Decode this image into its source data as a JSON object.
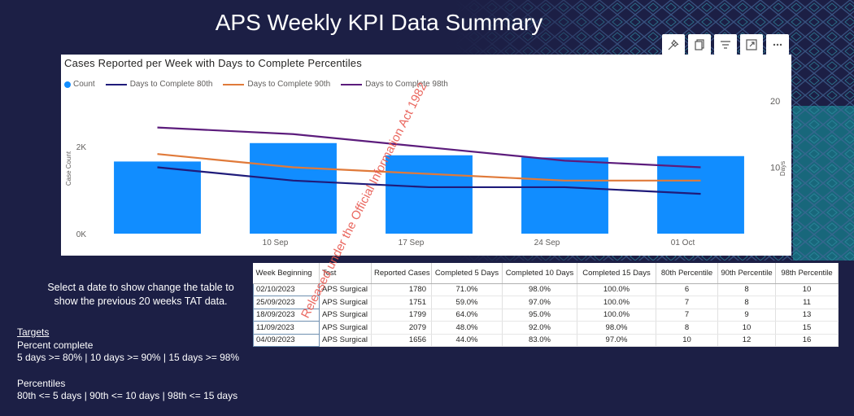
{
  "page": {
    "title": "APS Weekly KPI Data Summary",
    "watermark": "Released under the Official Information Act 1982"
  },
  "toolbar": {
    "items": [
      {
        "icon": "pin-icon"
      },
      {
        "icon": "copy-visual-icon"
      },
      {
        "icon": "filter-icon"
      },
      {
        "icon": "focus-mode-icon"
      },
      {
        "icon": "more-options-icon"
      }
    ]
  },
  "chart_data": {
    "type": "bar",
    "title": "Cases Reported per Week with Days to Complete Percentiles",
    "legend_position": "top-left",
    "legend": [
      {
        "label": "Count",
        "color": "#118dff",
        "kind": "dot"
      },
      {
        "label": "Days to Complete 80th",
        "color": "#1f1b7a",
        "kind": "line"
      },
      {
        "label": "Days to Complete 90th",
        "color": "#e07a3a",
        "kind": "line"
      },
      {
        "label": "Days to Complete 98th",
        "color": "#5c1c7c",
        "kind": "line"
      }
    ],
    "categories": [
      "04/09/2023",
      "11/09/2023",
      "18/09/2023",
      "25/09/2023",
      "02/10/2023"
    ],
    "x_tick_labels": [
      "",
      "10 Sep",
      "17 Sep",
      "24 Sep",
      "01 Oct"
    ],
    "bars": {
      "name": "Count",
      "values": [
        1656,
        2079,
        1799,
        1751,
        1780
      ],
      "color": "#118dff"
    },
    "lines": [
      {
        "name": "Days to Complete 80th",
        "values": [
          10,
          8,
          7,
          7,
          6
        ],
        "color": "#1f1b7a"
      },
      {
        "name": "Days to Complete 90th",
        "values": [
          12,
          10,
          9,
          8,
          8
        ],
        "color": "#e07a3a"
      },
      {
        "name": "Days to Complete 98th",
        "values": [
          16,
          15,
          13,
          11,
          10
        ],
        "color": "#5c1c7c"
      }
    ],
    "ylabel_left": "Case Count",
    "ylabel_right": "Days",
    "ylim_left": [
      0,
      2000
    ],
    "yticks_left": [
      {
        "value": 0,
        "label": "0K"
      },
      {
        "value": 2000,
        "label": "2K"
      }
    ],
    "ylim_right": [
      0,
      20
    ],
    "yticks_right": [
      {
        "value": 10,
        "label": "10"
      },
      {
        "value": 20,
        "label": "20"
      }
    ],
    "grid": false
  },
  "table": {
    "headers": [
      "Week Beginning",
      "Test",
      "Reported Cases",
      "Completed 5 Days",
      "Completed 10 Days",
      "Completed 15 Days",
      "80th Percentile",
      "90th Percentile",
      "98th Percentile"
    ],
    "rows": [
      [
        "02/10/2023",
        "APS Surgical",
        "1780",
        "71.0%",
        "98.0%",
        "100.0%",
        "6",
        "8",
        "10"
      ],
      [
        "25/09/2023",
        "APS Surgical",
        "1751",
        "59.0%",
        "97.0%",
        "100.0%",
        "7",
        "8",
        "11"
      ],
      [
        "18/09/2023",
        "APS Surgical",
        "1799",
        "64.0%",
        "95.0%",
        "100.0%",
        "7",
        "9",
        "13"
      ],
      [
        "11/09/2023",
        "APS Surgical",
        "2079",
        "48.0%",
        "92.0%",
        "98.0%",
        "8",
        "10",
        "15"
      ],
      [
        "04/09/2023",
        "APS Surgical",
        "1656",
        "44.0%",
        "83.0%",
        "97.0%",
        "10",
        "12",
        "16"
      ]
    ]
  },
  "instruction": {
    "line1": "Select a date to show change the table to",
    "line2": "show the previous 20 weeks TAT data."
  },
  "targets": {
    "heading": "Targets",
    "percent_label": "Percent complete",
    "percent_values": "5 days >= 80% | 10 days >= 90% | 15 days >= 98%",
    "percentiles_label": "Percentiles",
    "percentiles_values": "80th <= 5 days | 90th <= 10 days | 98th <= 15 days"
  },
  "colors": {
    "background": "#1c1f45",
    "accent_teal": "#16a3a8",
    "bar": "#118dff"
  }
}
